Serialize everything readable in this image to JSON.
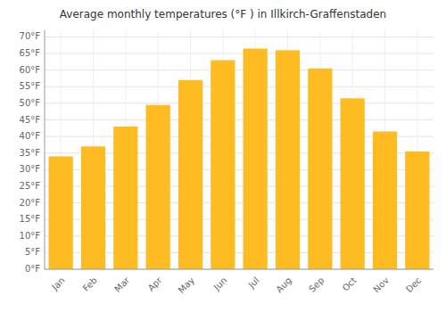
{
  "chart_data": {
    "type": "bar",
    "title": "Average monthly temperatures (°F ) in Illkirch-Graffenstaden",
    "categories": [
      "Jan",
      "Feb",
      "Mar",
      "Apr",
      "May",
      "Jun",
      "Jul",
      "Aug",
      "Sep",
      "Oct",
      "Nov",
      "Dec"
    ],
    "values": [
      34,
      37,
      43,
      49.5,
      57,
      63,
      66.5,
      66,
      60.5,
      51.5,
      41.5,
      35.5
    ],
    "color": "#FFBB22",
    "ylim": [
      0,
      72
    ],
    "yticks": [
      {
        "value": 0,
        "label": "0°F"
      },
      {
        "value": 5,
        "label": "5°F"
      },
      {
        "value": 10,
        "label": "10°F"
      },
      {
        "value": 15,
        "label": "15°F"
      },
      {
        "value": 20,
        "label": "20°F"
      },
      {
        "value": 25,
        "label": "25°F"
      },
      {
        "value": 30,
        "label": "30°F"
      },
      {
        "value": 35,
        "label": "35°F"
      },
      {
        "value": 40,
        "label": "40°F"
      },
      {
        "value": 45,
        "label": "45°F"
      },
      {
        "value": 50,
        "label": "50°F"
      },
      {
        "value": 55,
        "label": "55°F"
      },
      {
        "value": 60,
        "label": "60°F"
      },
      {
        "value": 65,
        "label": "65°F"
      },
      {
        "value": 70,
        "label": "70°F"
      }
    ],
    "grid": true
  }
}
